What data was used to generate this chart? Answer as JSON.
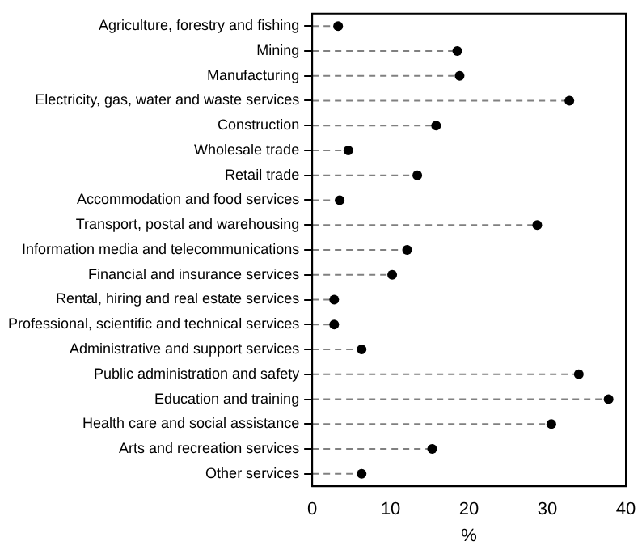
{
  "chart_data": {
    "type": "lollipop",
    "orientation": "horizontal",
    "xlabel": "%",
    "categories": [
      "Agriculture, forestry and fishing",
      "Mining",
      "Manufacturing",
      "Electricity, gas, water and waste services",
      "Construction",
      "Wholesale trade",
      "Retail trade",
      "Accommodation and food services",
      "Transport, postal and warehousing",
      "Information media and telecommunications",
      "Financial and insurance services",
      "Rental, hiring and real estate services",
      "Professional, scientific and technical services",
      "Administrative and support services",
      "Public administration and safety",
      "Education and training",
      "Health care and social assistance",
      "Arts and recreation services",
      "Other services"
    ],
    "values": [
      3.3,
      18.5,
      18.8,
      32.8,
      15.8,
      4.6,
      13.4,
      3.5,
      28.7,
      12.1,
      10.2,
      2.8,
      2.8,
      6.3,
      34.0,
      37.8,
      30.5,
      15.3,
      6.3
    ],
    "color": "#000000",
    "xlim": [
      0,
      40
    ],
    "xticks": [
      0,
      10,
      20,
      30,
      40
    ],
    "grid": false,
    "legend": false,
    "marker": "circle",
    "line_style": "dashed"
  }
}
